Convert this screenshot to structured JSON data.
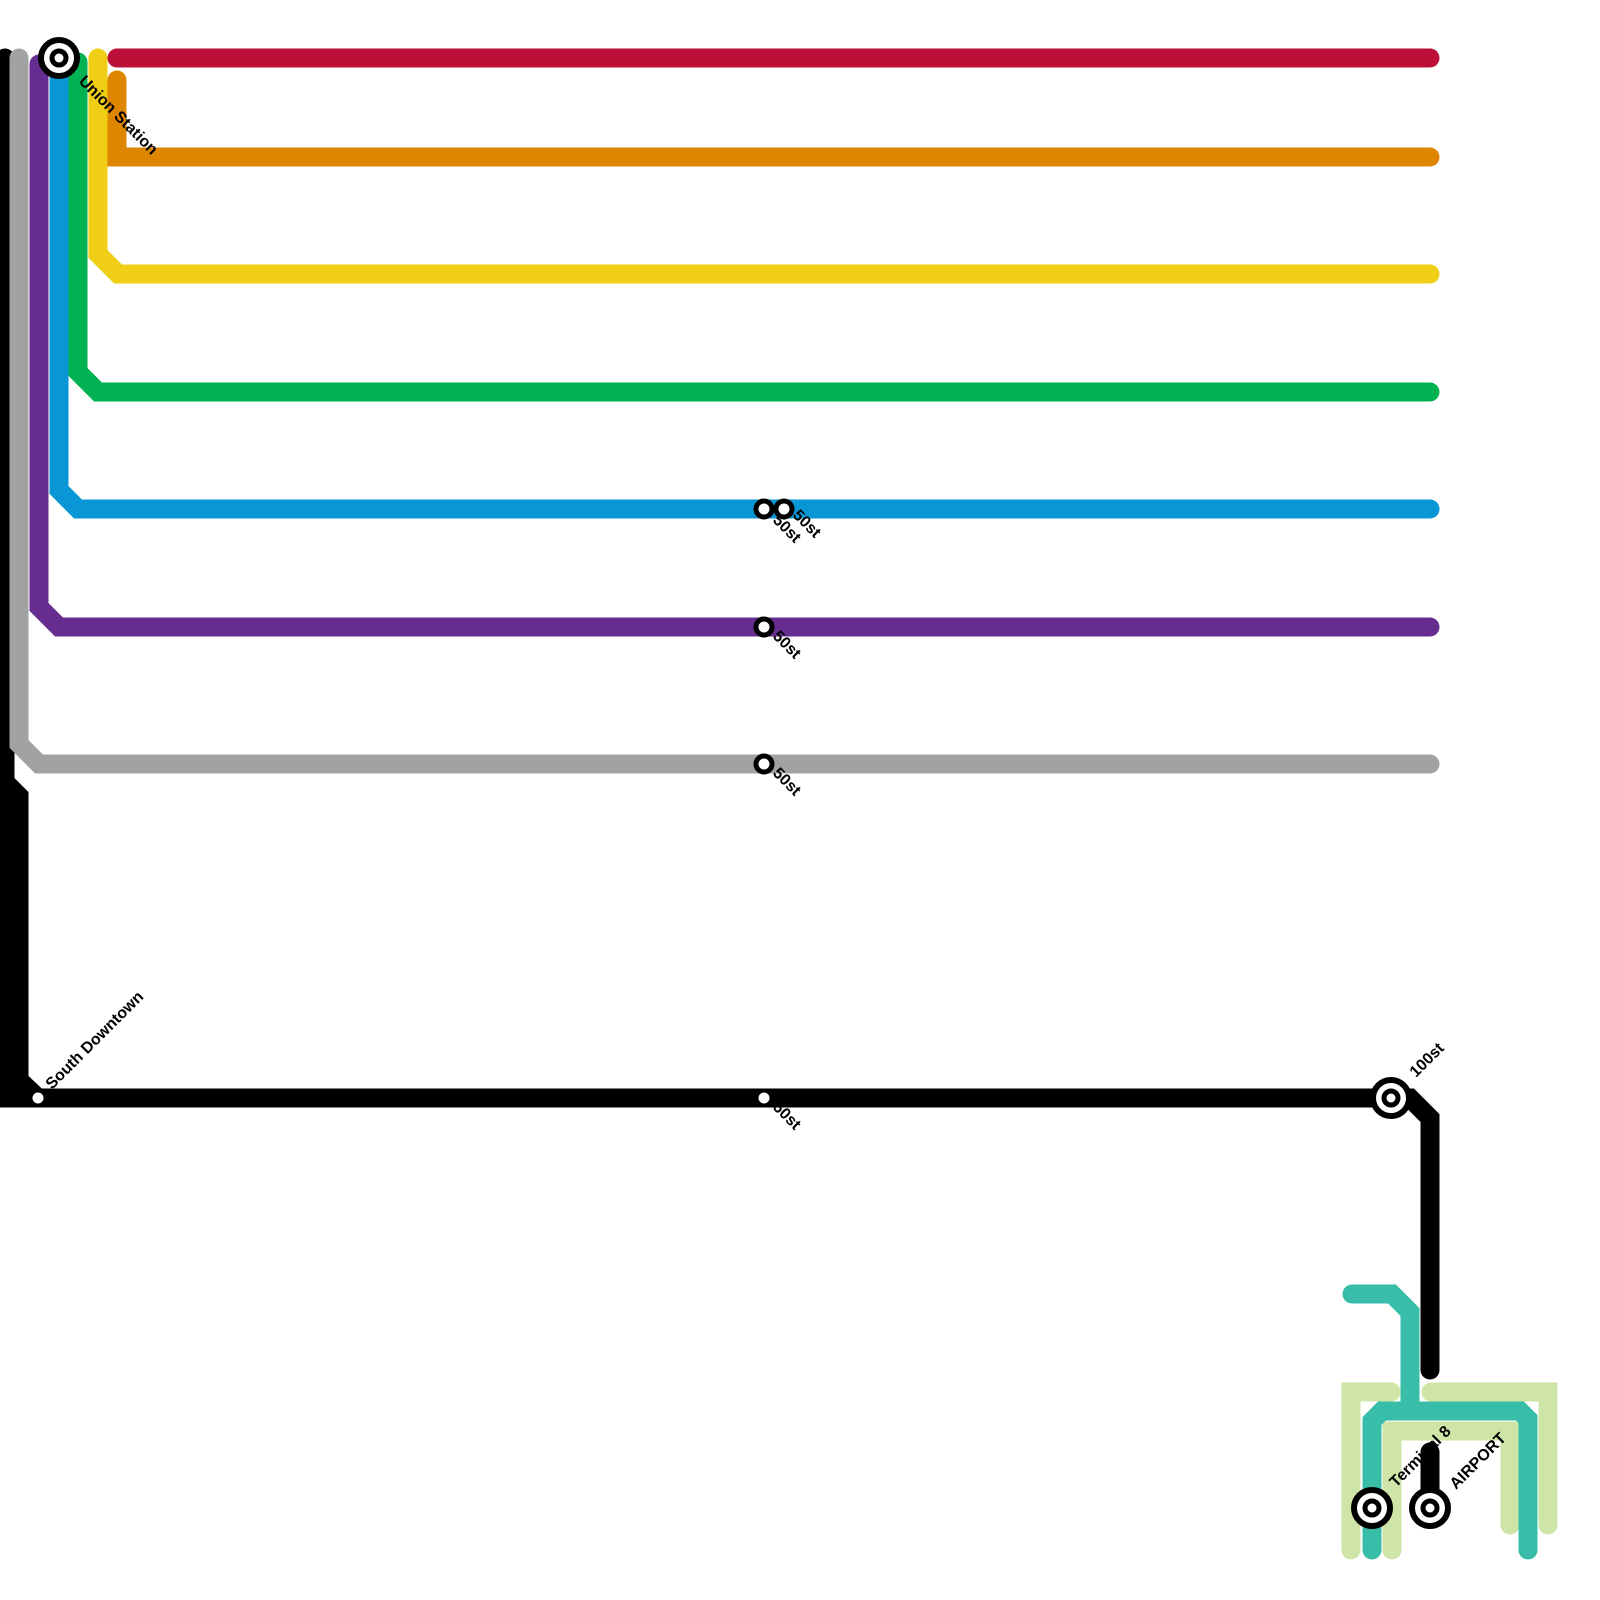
{
  "lines": {
    "black": {
      "color": "#000000"
    },
    "gray": {
      "color": "#a2a2a2"
    },
    "purple": {
      "color": "#662c90"
    },
    "blue": {
      "color": "#0896d7"
    },
    "green": {
      "color": "#00b251"
    },
    "yellow": {
      "color": "#f0ce15"
    },
    "orange": {
      "color": "#df8600"
    },
    "red": {
      "color": "#bd1038"
    },
    "teal": {
      "color": "#37bda8"
    },
    "lightgreen": {
      "color": "#cfe5a8"
    }
  },
  "stations": {
    "union_station": "Union Station",
    "south_downtown": "South Downtown",
    "blue_50st_a": "50st",
    "blue_50st_b": "50st",
    "purple_50st": "50st",
    "gray_50st": "50st",
    "black_50st": "50st",
    "s100st": "100st",
    "terminal8": "Terminal 8",
    "airport": "AIRPORT"
  }
}
